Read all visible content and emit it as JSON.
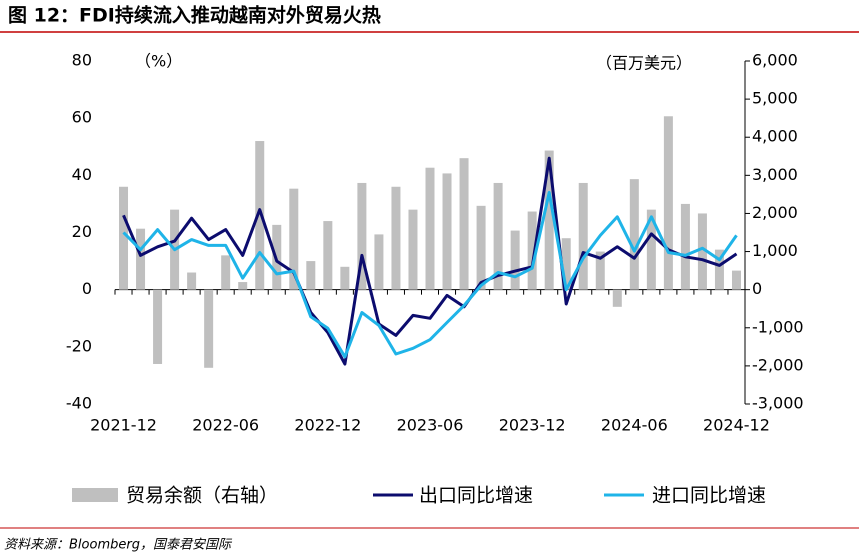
{
  "chart_data": {
    "type": "combo",
    "title": "图 12：FDI持续流入推动越南对外贸易火热",
    "y_unit": "（%）",
    "y2_unit": "（百万美元）",
    "source": "资料来源：Bloomberg，国泰君安国际",
    "categories": [
      "2021-12",
      null,
      null,
      null,
      null,
      null,
      "2022-06",
      null,
      null,
      null,
      null,
      null,
      "2022-12",
      null,
      null,
      null,
      null,
      null,
      "2023-06",
      null,
      null,
      null,
      null,
      null,
      "2023-12",
      null,
      null,
      null,
      null,
      null,
      "2024-06",
      null,
      null,
      null,
      null,
      null,
      "2024-12"
    ],
    "ylim": [
      -40,
      80
    ],
    "yticks": [
      -40,
      -20,
      0,
      20,
      40,
      60,
      80
    ],
    "y2lim": [
      -3000,
      6000
    ],
    "y2ticks": [
      {
        "value": -3000,
        "label": "-3,000"
      },
      {
        "value": -2000,
        "label": "-2,000"
      },
      {
        "value": -1000,
        "label": "-1,000"
      },
      0,
      {
        "value": 1000,
        "label": "1,000"
      },
      {
        "value": 2000,
        "label": "2,000"
      },
      {
        "value": 3000,
        "label": "3,000"
      },
      {
        "value": 4000,
        "label": "4,000"
      },
      {
        "value": 5000,
        "label": "5,000"
      },
      {
        "value": 6000,
        "label": "6,000"
      }
    ],
    "series": [
      {
        "name": "贸易余额（右轴）",
        "type": "bar",
        "axis": "y2",
        "color": "#bfbfbf",
        "values": [
          2700,
          1600,
          -1950,
          2100,
          450,
          -2050,
          900,
          200,
          3900,
          1700,
          2650,
          750,
          1800,
          600,
          2800,
          1450,
          2700,
          2100,
          3200,
          3050,
          3450,
          2200,
          2800,
          1550,
          2050,
          3650,
          1350,
          2800,
          1000,
          -450,
          2900,
          2100,
          4550,
          2250,
          2000,
          1050,
          500
        ]
      },
      {
        "name": "出口同比增速",
        "type": "line",
        "color": "#0c0c6e",
        "values": [
          26,
          12,
          15,
          17,
          25,
          17.5,
          21,
          12,
          28,
          10,
          6,
          -8,
          -15,
          -26,
          12,
          -12,
          -16,
          -9,
          -10,
          -2,
          -6,
          2.5,
          5,
          6.5,
          8,
          46,
          -5,
          13,
          11,
          15,
          11,
          19.5,
          14,
          11.5,
          10.5,
          8.5,
          12.5
        ]
      },
      {
        "name": "进口同比增速",
        "type": "line",
        "color": "#1fb4e8",
        "values": [
          20,
          14,
          21,
          14,
          17.5,
          15.5,
          15.5,
          4,
          13,
          5.5,
          6.5,
          -9.5,
          -13.5,
          -23.5,
          -8,
          -12.5,
          -22.5,
          -20.5,
          -17.5,
          -11.5,
          -5.5,
          1.5,
          6,
          4.5,
          7.5,
          34,
          0,
          11,
          19,
          25.5,
          13.5,
          25.5,
          13,
          12,
          14.5,
          10.5,
          19
        ]
      }
    ]
  }
}
